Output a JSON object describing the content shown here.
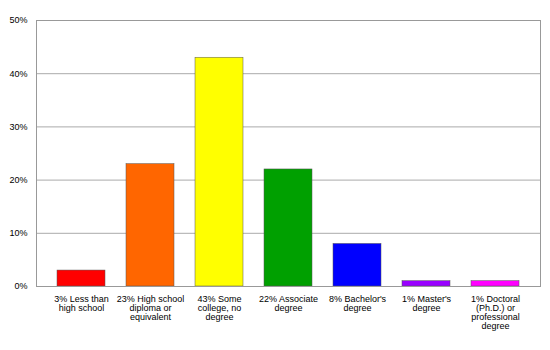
{
  "chart_data": {
    "type": "bar",
    "categories": [
      "3% Less than high school",
      "23% High school diploma or equivalent",
      "43% Some college, no degree",
      "22% Associate degree",
      "8% Bachelor's degree",
      "1% Master's degree",
      "1% Doctoral (Ph.D.) or professional degree"
    ],
    "values": [
      3,
      23,
      43,
      22,
      8,
      1,
      1
    ],
    "colors": [
      "#ff0000",
      "#ff6600",
      "#ffff00",
      "#00a000",
      "#0000ff",
      "#9900ff",
      "#ff00ff"
    ],
    "ylim": [
      0,
      50
    ],
    "yticks": [
      {
        "value": 0,
        "label": "0%"
      },
      {
        "value": 10,
        "label": "10%"
      },
      {
        "value": 20,
        "label": "20%"
      },
      {
        "value": 30,
        "label": "30%"
      },
      {
        "value": 40,
        "label": "40%"
      },
      {
        "value": 50,
        "label": "50%"
      }
    ],
    "grid": true
  }
}
